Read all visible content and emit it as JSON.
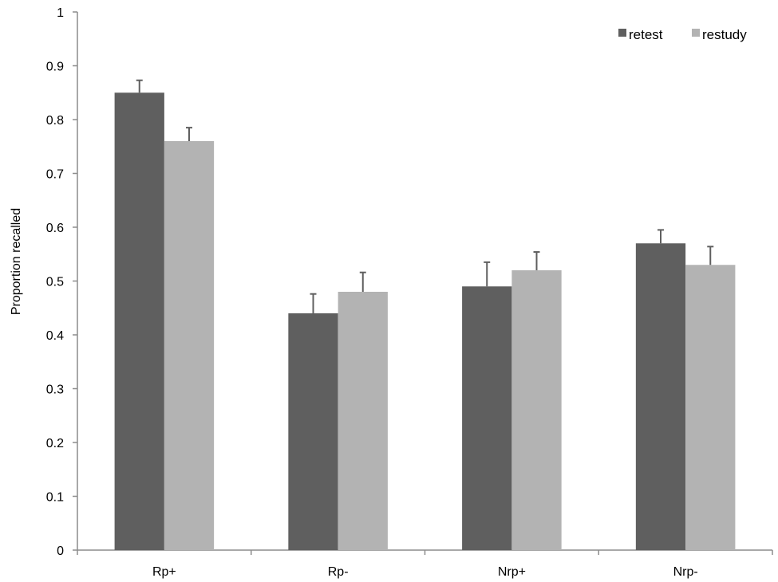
{
  "chart_data": {
    "type": "bar",
    "categories": [
      "Rp+",
      "Rp-",
      "Nrp+",
      "Nrp-"
    ],
    "series": [
      {
        "name": "retest",
        "values": [
          0.85,
          0.44,
          0.49,
          0.57
        ],
        "errors": [
          0.023,
          0.036,
          0.045,
          0.025
        ],
        "color": "#5f5f5f"
      },
      {
        "name": "restudy",
        "values": [
          0.76,
          0.48,
          0.52,
          0.53
        ],
        "errors": [
          0.025,
          0.036,
          0.034,
          0.034
        ],
        "color": "#b3b3b3"
      }
    ],
    "ylabel": "Proportion recalled",
    "xlabel": "",
    "ylim": [
      0,
      1
    ],
    "yticks": [
      "0",
      "0.1",
      "0.2",
      "0.3",
      "0.4",
      "0.5",
      "0.6",
      "0.7",
      "0.8",
      "0.9",
      "1"
    ],
    "grid": false,
    "legend_position": "top-right",
    "axis_color": "#8c8c8c",
    "error_bar_color": "#5f5f5f"
  }
}
